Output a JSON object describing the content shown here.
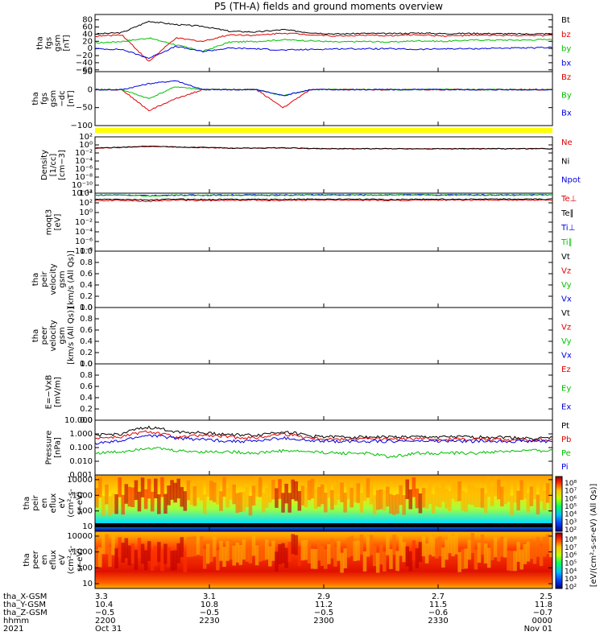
{
  "title": "P5 (TH-A) fields and ground moments overview",
  "panels": [
    {
      "id": "fgs_gsm",
      "label": [
        "tha",
        "fgs",
        "gsm",
        "[nT]"
      ],
      "yticks": [
        "80",
        "60",
        "40",
        "20",
        "0",
        "−20",
        "−40",
        "−60"
      ],
      "legend": [
        {
          "text": "Bt",
          "color": "#000000"
        },
        {
          "text": "bz",
          "color": "#e00000"
        },
        {
          "text": "by",
          "color": "#00c000"
        },
        {
          "text": "bx",
          "color": "#0000e0"
        }
      ]
    },
    {
      "id": "fgs_gsm_dc",
      "label": [
        "tha",
        "fgs",
        "gsm",
        "−dc",
        "[nT]"
      ],
      "yticks": [
        "50",
        "0",
        "−50",
        "−100"
      ],
      "legend": [
        {
          "text": "Bz",
          "color": "#e00000"
        },
        {
          "text": "By",
          "color": "#00c000"
        },
        {
          "text": "Bx",
          "color": "#0000e0"
        }
      ]
    },
    {
      "id": "density",
      "label": [
        "Density",
        "[1/cc]",
        "[cm−3]"
      ],
      "yticks": [
        "10²",
        "10⁰",
        "10⁻²",
        "10⁻⁴",
        "10⁻⁶",
        "10⁻⁸",
        "10⁻¹⁰",
        "10⁻¹²"
      ],
      "legend": [
        {
          "text": "Ne",
          "color": "#e00000"
        },
        {
          "text": "Ni",
          "color": "#000000"
        },
        {
          "text": "Npot",
          "color": "#0000e0"
        }
      ]
    },
    {
      "id": "temp",
      "label": [
        "moqt3",
        "[eV]"
      ],
      "yticks": [
        "10⁴",
        "10²",
        "10⁰",
        "10⁻²",
        "10⁻⁴",
        "10⁻⁶",
        "10⁻⁸"
      ],
      "legend": [
        {
          "text": "Te⊥",
          "color": "#e00000"
        },
        {
          "text": "Te∥",
          "color": "#000000"
        },
        {
          "text": "Ti⊥",
          "color": "#0000e0"
        },
        {
          "text": "Ti∥",
          "color": "#00c000"
        }
      ]
    },
    {
      "id": "vi",
      "label": [
        "tha",
        "peir",
        "velocity",
        "gsm",
        "[km/s (All Qs)]"
      ],
      "yticks": [
        "1.0",
        "0.8",
        "0.6",
        "0.4",
        "0.2",
        "0.0"
      ],
      "legend": [
        {
          "text": "Vt",
          "color": "#000000"
        },
        {
          "text": "Vz",
          "color": "#e00000"
        },
        {
          "text": "Vy",
          "color": "#00c000"
        },
        {
          "text": "Vx",
          "color": "#0000e0"
        }
      ]
    },
    {
      "id": "ve",
      "label": [
        "tha",
        "peer",
        "velocity",
        "gsm",
        "[km/s (All Qs)]"
      ],
      "yticks": [
        "1.0",
        "0.8",
        "0.6",
        "0.4",
        "0.2",
        "0.0"
      ],
      "legend": [
        {
          "text": "Vt",
          "color": "#000000"
        },
        {
          "text": "Vz",
          "color": "#e00000"
        },
        {
          "text": "Vy",
          "color": "#00c000"
        },
        {
          "text": "Vx",
          "color": "#0000e0"
        }
      ]
    },
    {
      "id": "efield",
      "label": [
        "E=−VxB",
        "[mV/m]"
      ],
      "yticks": [
        "1.0",
        "0.8",
        "0.6",
        "0.4",
        "0.2",
        "0.0"
      ],
      "legend": [
        {
          "text": "Ez",
          "color": "#e00000"
        },
        {
          "text": "Ey",
          "color": "#00c000"
        },
        {
          "text": "Ex",
          "color": "#0000e0"
        }
      ]
    },
    {
      "id": "pressure",
      "label": [
        "Pressure",
        "[nPa]"
      ],
      "yticks": [
        "10.000",
        "1.000",
        "0.100",
        "0.010",
        "0.001"
      ],
      "legend": [
        {
          "text": "Pt",
          "color": "#000000"
        },
        {
          "text": "Pb",
          "color": "#e00000"
        },
        {
          "text": "Pe",
          "color": "#00c000"
        },
        {
          "text": "Pi",
          "color": "#0000e0"
        }
      ]
    },
    {
      "id": "ion_spec",
      "label": [
        "tha",
        "peir",
        "en",
        "eflux",
        "eV",
        "(cm²-s-",
        "sr-eV)"
      ],
      "yticks": [
        "10000",
        "1000",
        "100",
        "10"
      ],
      "legend": []
    },
    {
      "id": "ele_spec",
      "label": [
        "tha",
        "peer",
        "en",
        "eflux",
        "eV",
        "(cm²-s-",
        "sr-eV)"
      ],
      "yticks": [
        "10000",
        "1000",
        "100",
        "10"
      ],
      "legend": []
    }
  ],
  "colorbar": {
    "ticks": [
      "10⁸",
      "10⁷",
      "10⁶",
      "10⁵",
      "10⁴",
      "10³",
      "10²"
    ],
    "label": "[eV/(cm²-s-sr-eV) (All Qs)]"
  },
  "colorbar2": {
    "ticks": [
      "10⁸",
      "10⁷",
      "10⁶",
      "10⁵",
      "10⁴",
      "10³",
      "10²"
    ]
  },
  "xaxis": {
    "rows": [
      {
        "label": "tha_X-GSM",
        "values": [
          "3.3",
          "3.1",
          "2.9",
          "2.7",
          "2.5"
        ]
      },
      {
        "label": "tha_Y-GSM",
        "values": [
          "10.4",
          "10.8",
          "11.2",
          "11.5",
          "11.8"
        ]
      },
      {
        "label": "tha_Z-GSM",
        "values": [
          "−0.5",
          "−0.5",
          "−0.5",
          "−0.6",
          "−0.7"
        ]
      },
      {
        "label": "hhmm",
        "values": [
          "2200",
          "2230",
          "2300",
          "2330",
          "0000"
        ]
      },
      {
        "label": "2021",
        "values": [
          "Oct 31",
          "",
          "",
          "",
          "Nov 01"
        ]
      }
    ]
  },
  "chart_data": [
    {
      "type": "line",
      "title": "P5 (TH-A) fields and ground moments overview",
      "ylabel": "tha fgs gsm [nT]",
      "ylim": [
        -80,
        90
      ],
      "x_range": [
        "2200",
        "0000"
      ],
      "series": [
        {
          "name": "Bt",
          "values": [
            32,
            36,
            70,
            60,
            55,
            40,
            38,
            45,
            36,
            32,
            34,
            33,
            35,
            33,
            34,
            33,
            32,
            33
          ]
        },
        {
          "name": "bz",
          "values": [
            25,
            30,
            -50,
            20,
            10,
            30,
            28,
            35,
            30,
            26,
            28,
            27,
            30,
            26,
            28,
            28,
            27,
            28
          ]
        },
        {
          "name": "by",
          "values": [
            5,
            10,
            20,
            0,
            -20,
            8,
            10,
            15,
            12,
            8,
            10,
            8,
            12,
            10,
            14,
            14,
            14,
            16
          ]
        },
        {
          "name": "bx",
          "values": [
            -12,
            -14,
            -40,
            -5,
            -20,
            -10,
            -12,
            -16,
            -14,
            -12,
            -12,
            -12,
            -14,
            -12,
            -12,
            -10,
            -10,
            -8
          ]
        }
      ]
    },
    {
      "type": "line",
      "ylabel": "tha fgs gsm −dc [nT]",
      "ylim": [
        -120,
        60
      ],
      "series": [
        {
          "name": "Bz",
          "values": [
            0,
            0,
            -70,
            -30,
            0,
            0,
            0,
            -60,
            0,
            0,
            0,
            0,
            0,
            0,
            0,
            0,
            0,
            0
          ]
        },
        {
          "name": "By",
          "values": [
            0,
            0,
            -30,
            10,
            0,
            0,
            0,
            -20,
            0,
            0,
            0,
            0,
            0,
            0,
            0,
            0,
            0,
            0
          ]
        },
        {
          "name": "Bx",
          "values": [
            0,
            0,
            20,
            30,
            0,
            0,
            0,
            -20,
            0,
            0,
            0,
            0,
            0,
            0,
            0,
            0,
            0,
            0
          ]
        }
      ]
    },
    {
      "type": "line",
      "ylabel": "Density [1/cc]",
      "scale": "log",
      "ylim": [
        1e-12,
        1000
      ],
      "series": [
        {
          "name": "Ne",
          "values": [
            1,
            1.5,
            3,
            2,
            1.5,
            1,
            1,
            1.2,
            0.8,
            0.7,
            0.7,
            0.7,
            0.7,
            0.7,
            0.7,
            0.7,
            0.7,
            0.7
          ]
        },
        {
          "name": "Ni",
          "values": [
            1,
            1.6,
            3.5,
            2,
            1.5,
            1,
            1,
            1.2,
            0.8,
            0.7,
            0.7,
            0.7,
            0.7,
            0.7,
            0.7,
            0.7,
            0.7,
            0.7
          ]
        }
      ]
    },
    {
      "type": "line",
      "ylabel": "moqt3 [eV]",
      "scale": "log",
      "ylim": [
        1e-08,
        10000
      ],
      "series": [
        {
          "name": "Te⊥",
          "values": [
            300,
            350,
            200,
            400,
            300,
            350,
            380,
            300,
            400,
            380,
            380,
            300,
            380,
            380,
            380,
            380,
            380,
            380
          ]
        },
        {
          "name": "Te∥",
          "values": [
            500,
            550,
            400,
            600,
            500,
            550,
            560,
            500,
            600,
            580,
            580,
            500,
            580,
            580,
            580,
            580,
            580,
            580
          ]
        },
        {
          "name": "Ti⊥",
          "values": [
            4000,
            4500,
            3000,
            4200,
            4000,
            4300,
            4400,
            4100,
            4500,
            4500,
            4500,
            4500,
            4500,
            4500,
            4500,
            4500,
            4500,
            4500
          ]
        },
        {
          "name": "Ti∥",
          "values": [
            3500,
            4000,
            2500,
            3800,
            3500,
            3800,
            3900,
            3600,
            4000,
            4000,
            4000,
            4000,
            4000,
            4000,
            4000,
            4000,
            4000,
            4000
          ]
        }
      ]
    },
    {
      "type": "line",
      "ylabel": "tha peir velocity gsm [km/s (All Qs)]",
      "ylim": [
        0,
        1
      ],
      "series": []
    },
    {
      "type": "line",
      "ylabel": "tha peer velocity gsm [km/s (All Qs)]",
      "ylim": [
        0,
        1
      ],
      "series": []
    },
    {
      "type": "line",
      "ylabel": "E=−VxB [mV/m]",
      "ylim": [
        0,
        1
      ],
      "series": []
    },
    {
      "type": "line",
      "ylabel": "Pressure [nPa]",
      "scale": "log",
      "ylim": [
        0.001,
        10
      ],
      "series": [
        {
          "name": "Pt",
          "values": [
            0.8,
            1,
            3,
            1.5,
            1.2,
            0.9,
            0.8,
            1.5,
            0.7,
            0.6,
            0.6,
            0.6,
            0.6,
            0.6,
            0.6,
            0.6,
            0.5,
            0.5
          ]
        },
        {
          "name": "Pb",
          "values": [
            0.5,
            0.6,
            1.5,
            0.5,
            0.8,
            0.6,
            0.5,
            1,
            0.5,
            0.4,
            0.45,
            0.4,
            0.45,
            0.4,
            0.45,
            0.4,
            0.35,
            0.4
          ]
        },
        {
          "name": "Pe",
          "values": [
            0.04,
            0.05,
            0.1,
            0.06,
            0.05,
            0.05,
            0.04,
            0.06,
            0.05,
            0.04,
            0.04,
            0.02,
            0.04,
            0.04,
            0.04,
            0.05,
            0.06,
            0.06
          ]
        },
        {
          "name": "Pi",
          "values": [
            0.2,
            0.3,
            0.8,
            0.5,
            0.4,
            0.3,
            0.3,
            0.5,
            0.3,
            0.3,
            0.3,
            0.3,
            0.3,
            0.3,
            0.3,
            0.3,
            0.3,
            0.3
          ]
        }
      ]
    },
    {
      "type": "heatmap",
      "ylabel": "tha peir en eflux eV (cm²-s-sr-eV)",
      "scale": "log",
      "ylim": [
        5,
        20000
      ]
    },
    {
      "type": "heatmap",
      "ylabel": "tha peer en eflux eV (cm²-s-sr-eV)",
      "scale": "log",
      "ylim": [
        5,
        20000
      ]
    }
  ]
}
